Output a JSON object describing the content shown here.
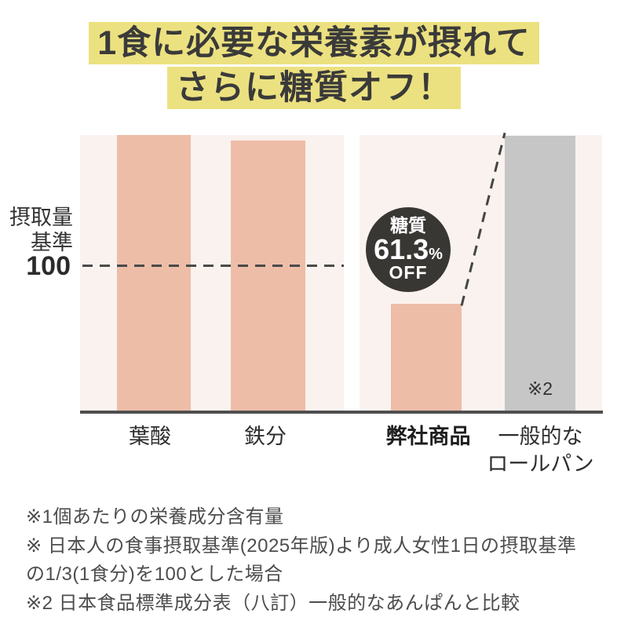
{
  "title": {
    "lines": [
      "1食に必要な栄養素が摂れて",
      "さらに糖質オフ！"
    ]
  },
  "colors": {
    "highlight": "#ece180",
    "title_text": "#3a3a3a",
    "bar_pink": "#edbda8",
    "bar_gray": "#c6c6c6",
    "panel_bg": "#faf2ee",
    "badge_bg": "#393734",
    "badge_text": "#ffffff",
    "axis": "#4f4f4f",
    "dash_line": "#4a4a4a",
    "note_text": "#4d4d4d"
  },
  "chart": {
    "y_axis": {
      "label_line1": "摂取量",
      "label_line2": "基準",
      "reference_value": "100"
    },
    "bars": [
      {
        "label": "葉酸",
        "value": 191,
        "color": "#edbda8"
      },
      {
        "label": "鉄分",
        "value": 187,
        "color": "#edbda8"
      },
      {
        "label": "弊社商品",
        "value": 74,
        "color": "#edbda8"
      },
      {
        "label": "一般的な",
        "label2": "ロールパン",
        "value": 190,
        "color": "#c6c6c6",
        "footnote_ref": "※2"
      }
    ],
    "badge": {
      "top": "糖質",
      "value": "61.3",
      "unit": "%",
      "bottom": "OFF"
    }
  },
  "chart_data": {
    "type": "bar",
    "title": "1食に必要な栄養素が摂れて さらに糖質オフ！",
    "categories": [
      "葉酸",
      "鉄分",
      "弊社商品",
      "一般的なロールパン"
    ],
    "values": [
      191,
      187,
      74,
      190
    ],
    "ylabel": "摂取量基準100",
    "ylim": [
      0,
      195
    ],
    "reference_line": 100,
    "grid": false,
    "legend": false,
    "annotations": [
      "糖質 61.3% OFF",
      "※2"
    ]
  },
  "notes": {
    "lines": [
      "※1個あたりの栄養成分含有量",
      "※ 日本人の食事摂取基準(2025年版)より成人女性1日の摂取基準",
      "の1/3(1食分)を100とした場合",
      "※2 日本食品標準成分表（八訂）一般的なあんぱんと比較"
    ]
  }
}
